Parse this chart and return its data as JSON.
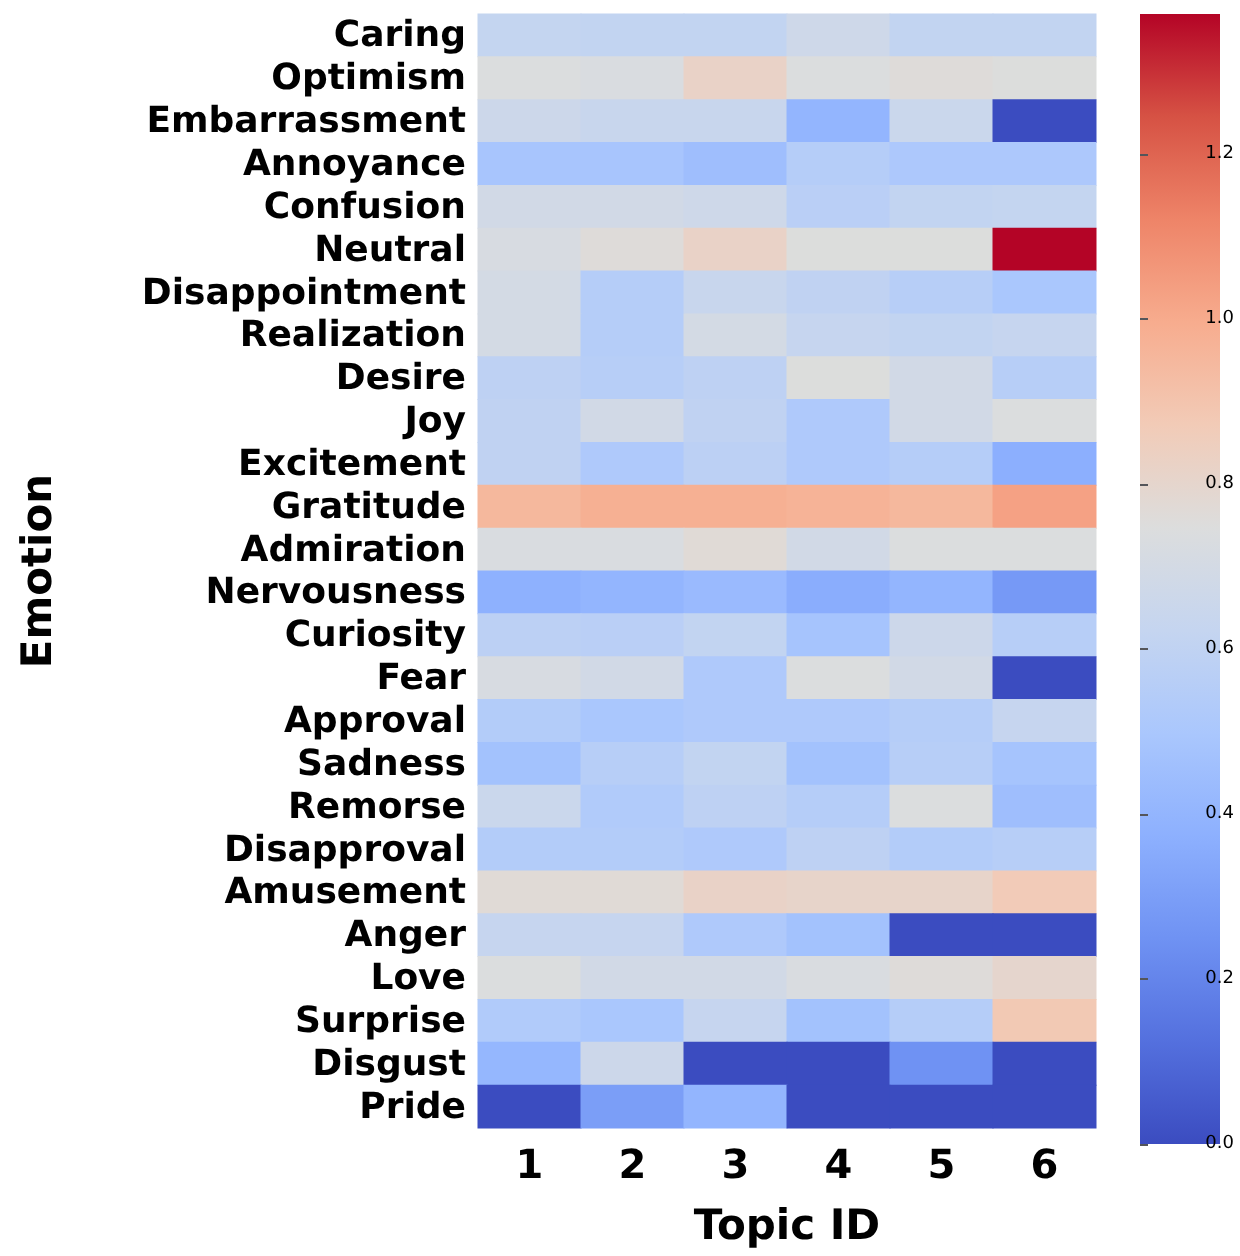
{
  "chart_data": {
    "type": "heatmap",
    "xlabel": "Topic ID",
    "ylabel": "Emotion",
    "categories": [
      "1",
      "2",
      "3",
      "4",
      "5",
      "6"
    ],
    "y_categories": [
      "Caring",
      "Optimism",
      "Embarrassment",
      "Annoyance",
      "Confusion",
      "Neutral",
      "Disappointment",
      "Realization",
      "Desire",
      "Joy",
      "Excitement",
      "Gratitude",
      "Admiration",
      "Nervousness",
      "Curiosity",
      "Fear",
      "Approval",
      "Sadness",
      "Remorse",
      "Disapproval",
      "Amusement",
      "Anger",
      "Love",
      "Surprise",
      "Disgust",
      "Pride"
    ],
    "cells": [
      [
        0.62,
        0.61,
        0.61,
        0.67,
        0.61,
        0.61
      ],
      [
        0.74,
        0.73,
        0.82,
        0.74,
        0.76,
        0.75
      ],
      [
        0.66,
        0.64,
        0.64,
        0.4,
        0.65,
        0.0
      ],
      [
        0.49,
        0.49,
        0.45,
        0.55,
        0.51,
        0.51
      ],
      [
        0.69,
        0.69,
        0.67,
        0.57,
        0.61,
        0.62
      ],
      [
        0.72,
        0.76,
        0.82,
        0.75,
        0.75,
        1.37
      ],
      [
        0.7,
        0.55,
        0.64,
        0.6,
        0.56,
        0.5
      ],
      [
        0.7,
        0.55,
        0.7,
        0.63,
        0.61,
        0.63
      ],
      [
        0.59,
        0.56,
        0.59,
        0.75,
        0.69,
        0.56
      ],
      [
        0.6,
        0.69,
        0.6,
        0.52,
        0.69,
        0.74
      ],
      [
        0.6,
        0.52,
        0.58,
        0.52,
        0.55,
        0.37
      ],
      [
        0.95,
        0.98,
        0.98,
        0.97,
        0.95,
        1.03
      ],
      [
        0.73,
        0.73,
        0.77,
        0.69,
        0.74,
        0.74
      ],
      [
        0.38,
        0.4,
        0.43,
        0.36,
        0.4,
        0.28
      ],
      [
        0.58,
        0.57,
        0.61,
        0.48,
        0.66,
        0.56
      ],
      [
        0.72,
        0.69,
        0.52,
        0.74,
        0.69,
        0.0
      ],
      [
        0.54,
        0.5,
        0.52,
        0.52,
        0.55,
        0.63
      ],
      [
        0.47,
        0.56,
        0.61,
        0.47,
        0.56,
        0.48
      ],
      [
        0.65,
        0.53,
        0.59,
        0.55,
        0.74,
        0.45
      ],
      [
        0.54,
        0.54,
        0.52,
        0.59,
        0.54,
        0.56
      ],
      [
        0.77,
        0.77,
        0.82,
        0.81,
        0.81,
        0.87
      ],
      [
        0.63,
        0.63,
        0.52,
        0.47,
        0.0,
        0.0
      ],
      [
        0.74,
        0.69,
        0.69,
        0.73,
        0.76,
        0.8
      ],
      [
        0.53,
        0.5,
        0.63,
        0.47,
        0.55,
        0.88
      ],
      [
        0.41,
        0.66,
        0.0,
        0.0,
        0.25,
        0.0
      ],
      [
        0.0,
        0.3,
        0.4,
        0.0,
        0.0,
        0.0
      ]
    ],
    "clim": [
      0,
      1.37
    ],
    "cticks": [
      {
        "value": 0,
        "label": "0.0"
      },
      {
        "value": 0.2,
        "label": "0.2"
      },
      {
        "value": 0.4,
        "label": "0.4"
      },
      {
        "value": 0.6,
        "label": "0.6"
      },
      {
        "value": 0.8,
        "label": "0.8"
      },
      {
        "value": 1,
        "label": "1.0"
      },
      {
        "value": 1.2,
        "label": "1.2"
      }
    ]
  }
}
